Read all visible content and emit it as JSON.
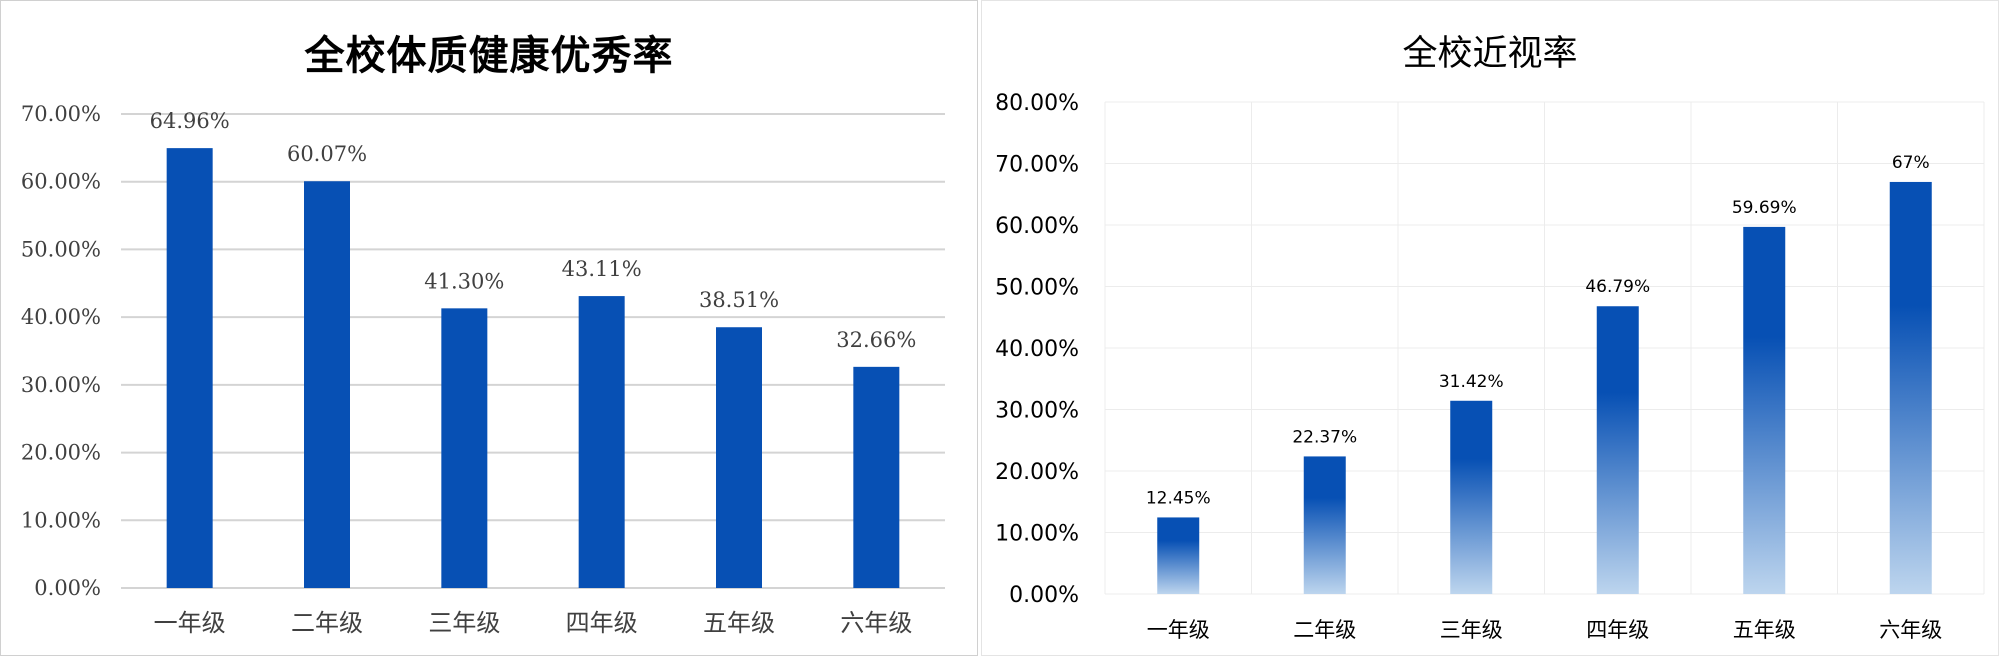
{
  "chart_data": [
    {
      "type": "bar",
      "title": "全校体质健康优秀率",
      "categories": [
        "一年级",
        "二年级",
        "三年级",
        "四年级",
        "五年级",
        "六年级"
      ],
      "values": [
        64.96,
        60.07,
        41.3,
        43.11,
        38.51,
        32.66
      ],
      "data_labels": [
        "64.96%",
        "60.07%",
        "41.30%",
        "43.11%",
        "38.51%",
        "32.66%"
      ],
      "ylim": [
        0,
        70
      ],
      "yticks": [
        "0.00%",
        "10.00%",
        "20.00%",
        "30.00%",
        "40.00%",
        "50.00%",
        "60.00%",
        "70.00%"
      ],
      "grid": "horizontal",
      "bar_color": "#0750B4"
    },
    {
      "type": "bar",
      "title": "全校近视率",
      "categories": [
        "一年级",
        "二年级",
        "三年级",
        "四年级",
        "五年级",
        "六年级"
      ],
      "values": [
        12.45,
        22.37,
        31.42,
        46.79,
        59.69,
        67
      ],
      "data_labels": [
        "12.45%",
        "22.37%",
        "31.42%",
        "46.79%",
        "59.69%",
        "67%"
      ],
      "ylim": [
        0,
        80
      ],
      "yticks": [
        "0.00%",
        "10.00%",
        "20.00%",
        "30.00%",
        "40.00%",
        "50.00%",
        "60.00%",
        "70.00%",
        "80.00%"
      ],
      "grid": "both",
      "bar_gradient": [
        "#0750B4",
        "#BDD5EE"
      ]
    }
  ]
}
